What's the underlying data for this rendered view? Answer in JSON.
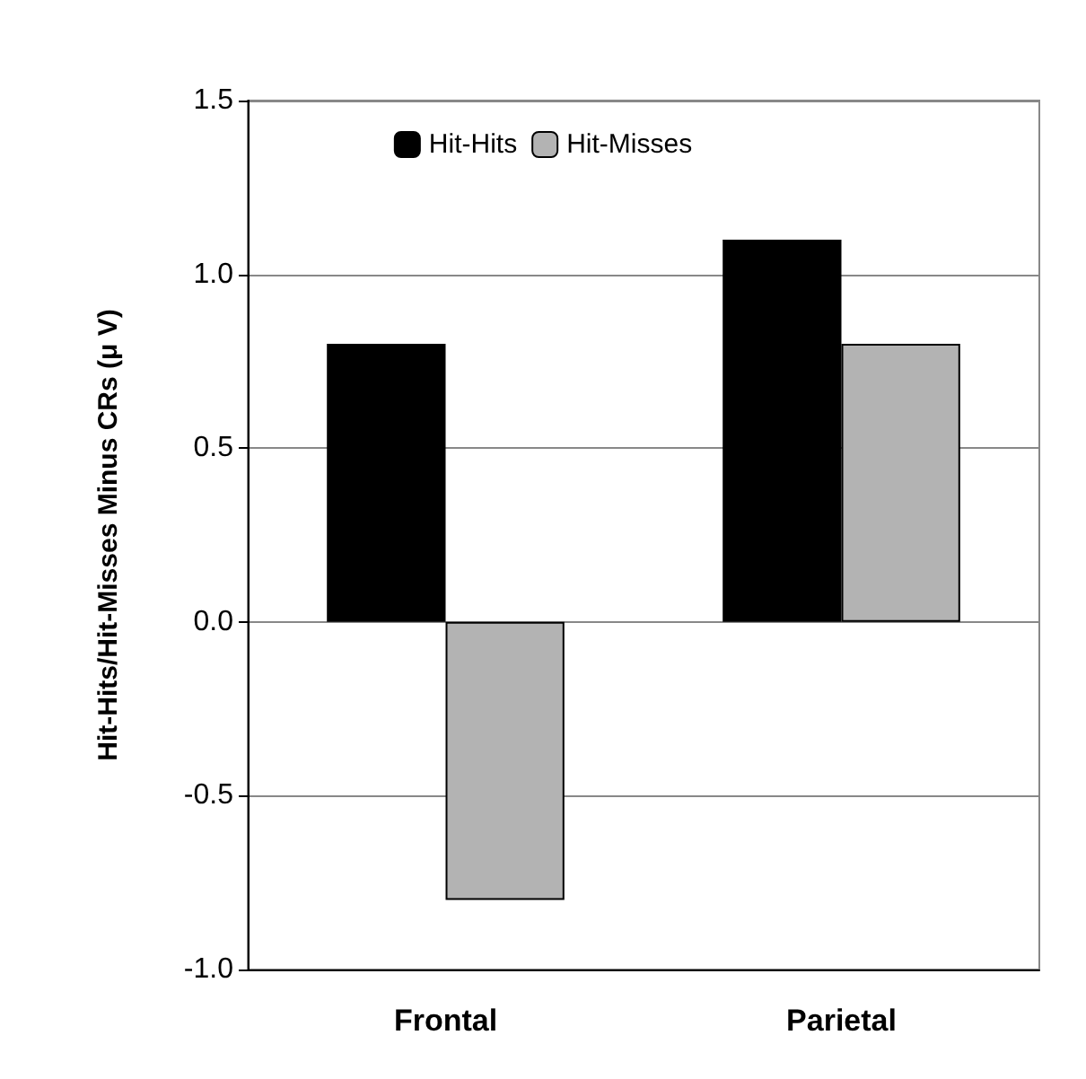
{
  "chart_data": {
    "type": "bar",
    "ylabel": "Hit-Hits/Hit-Misses Minus CRs (μ V)",
    "categories": [
      "Frontal",
      "Parietal"
    ],
    "series": [
      {
        "name": "Hit-Hits",
        "color": "#000000",
        "values": [
          0.8,
          1.1
        ]
      },
      {
        "name": "Hit-Misses",
        "color": "#b3b3b3",
        "values": [
          -0.8,
          0.8
        ]
      }
    ],
    "ylim": [
      -1.0,
      1.5
    ],
    "yticks": [
      {
        "value": -1.0,
        "label": "-1.0"
      },
      {
        "value": -0.5,
        "label": "-0.5"
      },
      {
        "value": 0,
        "label": "0.0"
      },
      {
        "value": 0.5,
        "label": "0.5"
      },
      {
        "value": 1.0,
        "label": "1.0"
      },
      {
        "value": 1.5,
        "label": "1.5"
      }
    ],
    "grid": "y",
    "legend": "top"
  }
}
